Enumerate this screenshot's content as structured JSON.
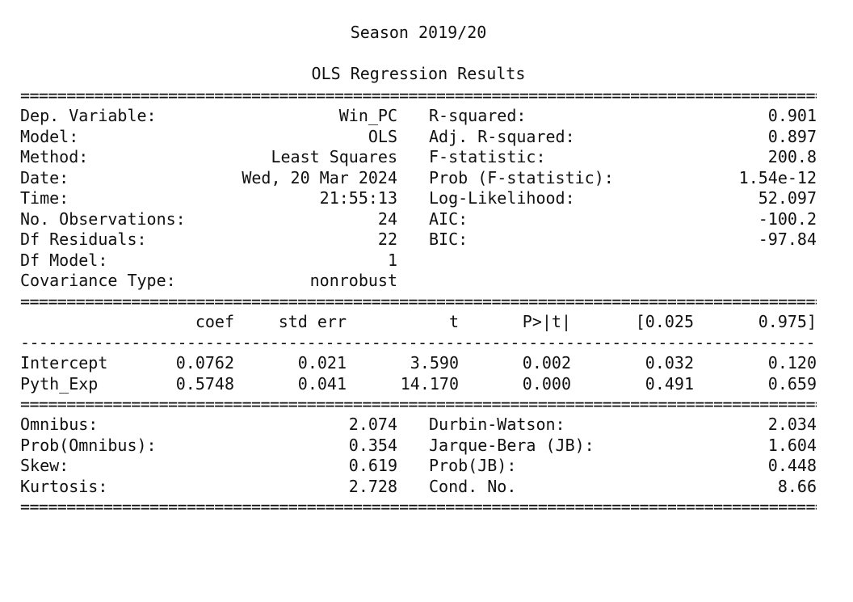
{
  "header": {
    "season_title": "Season 2019/20",
    "results_title": "OLS Regression Results"
  },
  "rules": {
    "double": "===============================================================================================================",
    "single": "---------------------------------------------------------------------------------------------------------------"
  },
  "summary": [
    {
      "label": "Dep. Variable:",
      "value": "Win_PC",
      "stat_label": "R-squared:",
      "stat_value": "0.901"
    },
    {
      "label": "Model:",
      "value": "OLS",
      "stat_label": "Adj. R-squared:",
      "stat_value": "0.897"
    },
    {
      "label": "Method:",
      "value": "Least Squares",
      "stat_label": "F-statistic:",
      "stat_value": "200.8"
    },
    {
      "label": "Date:",
      "value": "Wed, 20 Mar 2024",
      "stat_label": "Prob (F-statistic):",
      "stat_value": "1.54e-12"
    },
    {
      "label": "Time:",
      "value": "21:55:13",
      "stat_label": "Log-Likelihood:",
      "stat_value": "52.097"
    },
    {
      "label": "No. Observations:",
      "value": "24",
      "stat_label": "AIC:",
      "stat_value": "-100.2"
    },
    {
      "label": "Df Residuals:",
      "value": "22",
      "stat_label": "BIC:",
      "stat_value": "-97.84"
    },
    {
      "label": "Df Model:",
      "value": "1",
      "stat_label": "",
      "stat_value": ""
    },
    {
      "label": "Covariance Type:",
      "value": "nonrobust",
      "stat_label": "",
      "stat_value": ""
    }
  ],
  "coef_table": {
    "headers": [
      "coef",
      "std err",
      "t",
      "P>|t|",
      "[0.025",
      "0.975]"
    ],
    "rows": [
      {
        "name": "Intercept",
        "values": [
          "0.0762",
          "0.021",
          "3.590",
          "0.002",
          "0.032",
          "0.120"
        ]
      },
      {
        "name": "Pyth_Exp",
        "values": [
          "0.5748",
          "0.041",
          "14.170",
          "0.000",
          "0.491",
          "0.659"
        ]
      }
    ]
  },
  "diagnostics": [
    {
      "label": "Omnibus:",
      "value": "2.074",
      "stat_label": "Durbin-Watson:",
      "stat_value": "2.034"
    },
    {
      "label": "Prob(Omnibus):",
      "value": "0.354",
      "stat_label": "Jarque-Bera (JB):",
      "stat_value": "1.604"
    },
    {
      "label": "Skew:",
      "value": "0.619",
      "stat_label": "Prob(JB):",
      "stat_value": "0.448"
    },
    {
      "label": "Kurtosis:",
      "value": "2.728",
      "stat_label": "Cond. No.",
      "stat_value": "8.66"
    }
  ]
}
